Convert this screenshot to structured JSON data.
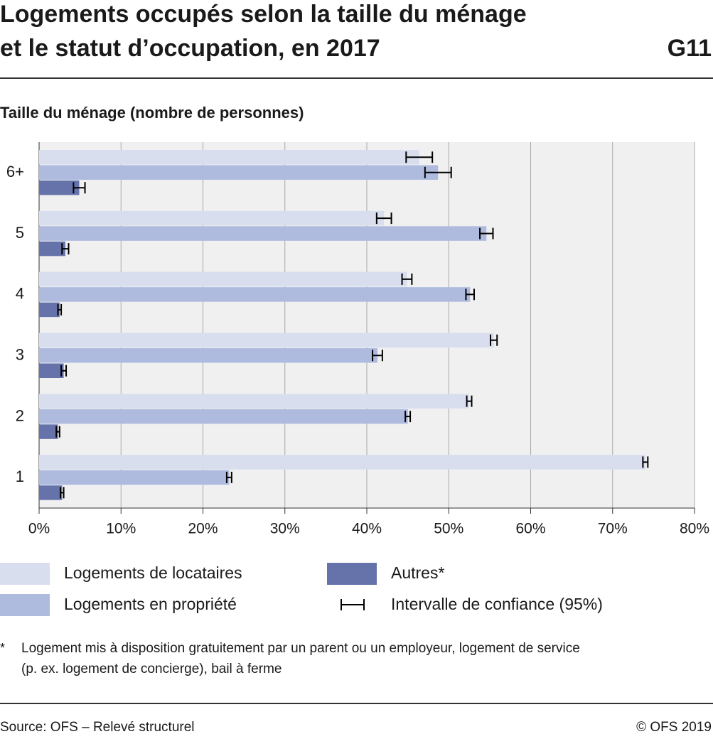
{
  "header": {
    "title": [
      "Logements occupés selon la taille du ménage",
      "et le statut d’occupation, en 2017"
    ],
    "code": "G11"
  },
  "chart_data": {
    "type": "bar",
    "orientation": "horizontal",
    "axis_title": "Taille du ménage (nombre de personnes)",
    "categories": [
      "6+",
      "5",
      "4",
      "3",
      "2",
      "1"
    ],
    "series": [
      {
        "name": "Logements de locataires",
        "color": "#d9deef",
        "values": [
          46.4,
          42.1,
          44.9,
          55.5,
          52.5,
          74.0
        ],
        "errors": [
          1.6,
          0.9,
          0.6,
          0.4,
          0.3,
          0.3
        ]
      },
      {
        "name": "Logements en propriété",
        "color": "#aebbdf",
        "values": [
          48.7,
          54.6,
          52.6,
          41.3,
          45.0,
          23.2
        ],
        "errors": [
          1.6,
          0.8,
          0.5,
          0.6,
          0.3,
          0.3
        ]
      },
      {
        "name": "Autres*",
        "color": "#6673aa",
        "values": [
          4.9,
          3.2,
          2.5,
          3.0,
          2.3,
          2.8
        ],
        "errors": [
          0.7,
          0.4,
          0.2,
          0.3,
          0.2,
          0.2
        ]
      }
    ],
    "error_bar_label": "Intervalle de confiance (95%)",
    "xlim": [
      0,
      80
    ],
    "xticks": [
      {
        "value": 0,
        "label": "0%"
      },
      {
        "value": 10,
        "label": "10%"
      },
      {
        "value": 20,
        "label": "20%"
      },
      {
        "value": 30,
        "label": "30%"
      },
      {
        "value": 40,
        "label": "40%"
      },
      {
        "value": 50,
        "label": "50%"
      },
      {
        "value": 60,
        "label": "60%"
      },
      {
        "value": 70,
        "label": "70%"
      },
      {
        "value": 80,
        "label": "80%"
      }
    ],
    "grid": true
  },
  "footnote": {
    "marker": "*",
    "lines": [
      "Logement mis à disposition gratuitement par un parent ou un employeur, logement de service",
      "(p. ex. logement de concierge), bail à ferme"
    ]
  },
  "footer": {
    "source": "Source: OFS – Relevé structurel",
    "copyright": "© OFS 2019"
  }
}
